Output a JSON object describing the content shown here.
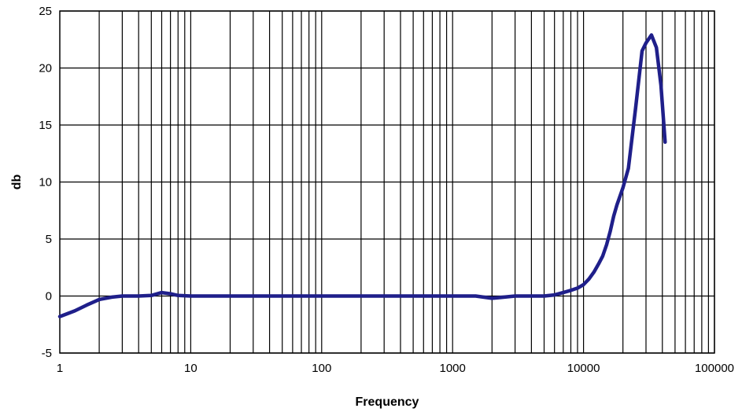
{
  "chart_data": {
    "type": "line",
    "xlabel": "Frequency",
    "ylabel": "db",
    "x_scale": "log",
    "xlim": [
      1,
      100000
    ],
    "ylim": [
      -5,
      25
    ],
    "x_ticks": [
      1,
      10,
      100,
      1000,
      10000,
      100000
    ],
    "x_tick_labels": [
      "1",
      "10",
      "100",
      "1000",
      "10000",
      "100000"
    ],
    "y_ticks": [
      -5,
      0,
      5,
      10,
      15,
      20,
      25
    ],
    "y_tick_labels": [
      "-5",
      "0",
      "5",
      "10",
      "15",
      "20",
      "25"
    ],
    "grid": true,
    "line_color": "#1f1f8a",
    "series": [
      {
        "x": [
          1,
          1.3,
          1.6,
          2,
          2.5,
          3,
          4,
          5,
          6,
          7,
          8,
          10,
          20,
          40,
          70,
          100,
          200,
          500,
          1000,
          1500,
          2000,
          3000,
          5000,
          6000,
          7000,
          8000,
          9000,
          10000,
          11000,
          12000,
          13000,
          14000,
          15000,
          16000,
          17000,
          18000,
          20000,
          22000,
          25000,
          28000,
          30000,
          33000,
          36000,
          39000,
          42000
        ],
        "y": [
          -1.8,
          -1.3,
          -0.8,
          -0.3,
          -0.1,
          0,
          0,
          0.05,
          0.3,
          0.2,
          0.05,
          0,
          0,
          0,
          0,
          0,
          0,
          0,
          0,
          0,
          -0.2,
          0,
          0,
          0.1,
          0.3,
          0.5,
          0.7,
          1.0,
          1.5,
          2.1,
          2.8,
          3.5,
          4.5,
          5.7,
          7.0,
          8.0,
          9.5,
          11.2,
          16.5,
          21.5,
          22.2,
          22.9,
          21.8,
          18.5,
          13.5
        ]
      }
    ]
  }
}
